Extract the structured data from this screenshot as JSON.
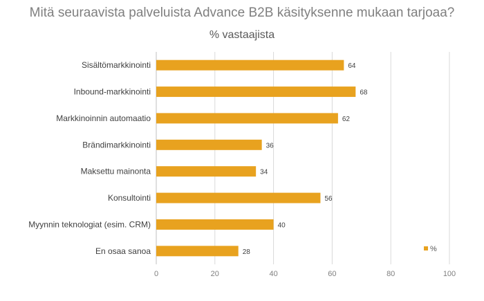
{
  "chart_data": {
    "type": "bar",
    "orientation": "horizontal",
    "title": "Mitä seuraavista palveluista Advance B2B käsityksenne mukaan tarjoaa?",
    "subtitle": "% vastaajista",
    "categories": [
      "Sisältömarkkinointi",
      "Inbound-markkinointi",
      "Markkinoinnin automaatio",
      "Brändimarkkinointi",
      "Maksettu mainonta",
      "Konsultointi",
      "Myynnin teknologiat (esim. CRM)",
      "En osaa sanoa"
    ],
    "series": [
      {
        "name": "%",
        "values": [
          64,
          68,
          62,
          36,
          34,
          56,
          40,
          28
        ]
      }
    ],
    "xlim": [
      0,
      100
    ],
    "xticks": [
      0,
      20,
      40,
      60,
      80,
      100
    ],
    "grid": "vertical",
    "legend_position": "right",
    "color": "#E8A21F"
  }
}
